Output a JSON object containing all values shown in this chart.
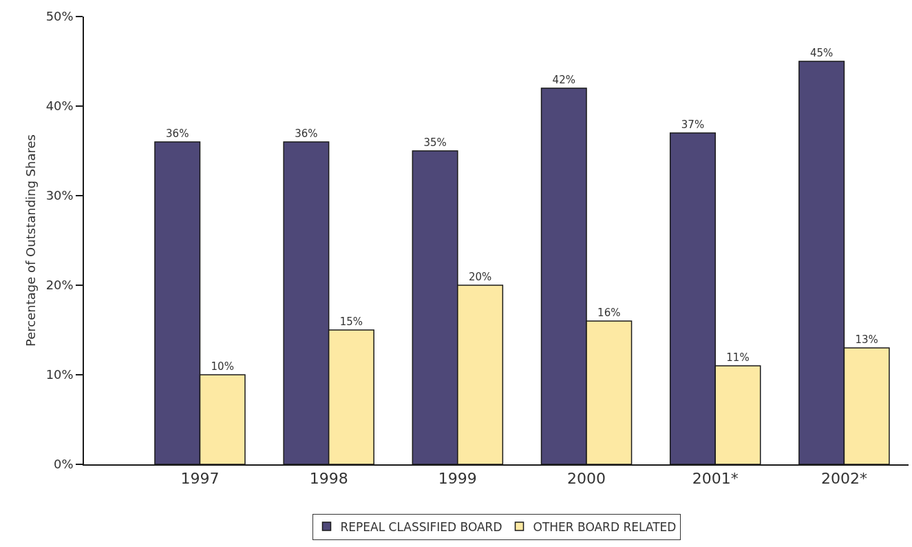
{
  "chart_data": {
    "type": "bar",
    "ylabel": "Percentage of Outstanding Shares",
    "categories": [
      "1997",
      "1998",
      "1999",
      "2000",
      "2001*",
      "2002*"
    ],
    "series": [
      {
        "name": "REPEAL CLASSIFIED BOARD",
        "color": "#4e4878",
        "values": [
          36,
          36,
          35,
          42,
          37,
          45
        ],
        "value_labels": [
          "36%",
          "36%",
          "35%",
          "42%",
          "37%",
          "45%"
        ]
      },
      {
        "name": "OTHER BOARD RELATED",
        "color": "#fde9a3",
        "values": [
          10,
          15,
          20,
          16,
          11,
          13
        ],
        "value_labels": [
          "10%",
          "15%",
          "20%",
          "16%",
          "11%",
          "13%"
        ]
      }
    ],
    "ylim": [
      0,
      50
    ],
    "yticks": [
      {
        "value": 0,
        "label": "0%"
      },
      {
        "value": 10,
        "label": "10%"
      },
      {
        "value": 20,
        "label": "20%"
      },
      {
        "value": 30,
        "label": "30%"
      },
      {
        "value": 40,
        "label": "40%"
      },
      {
        "value": 50,
        "label": "50%"
      }
    ],
    "legend": "bottom"
  }
}
